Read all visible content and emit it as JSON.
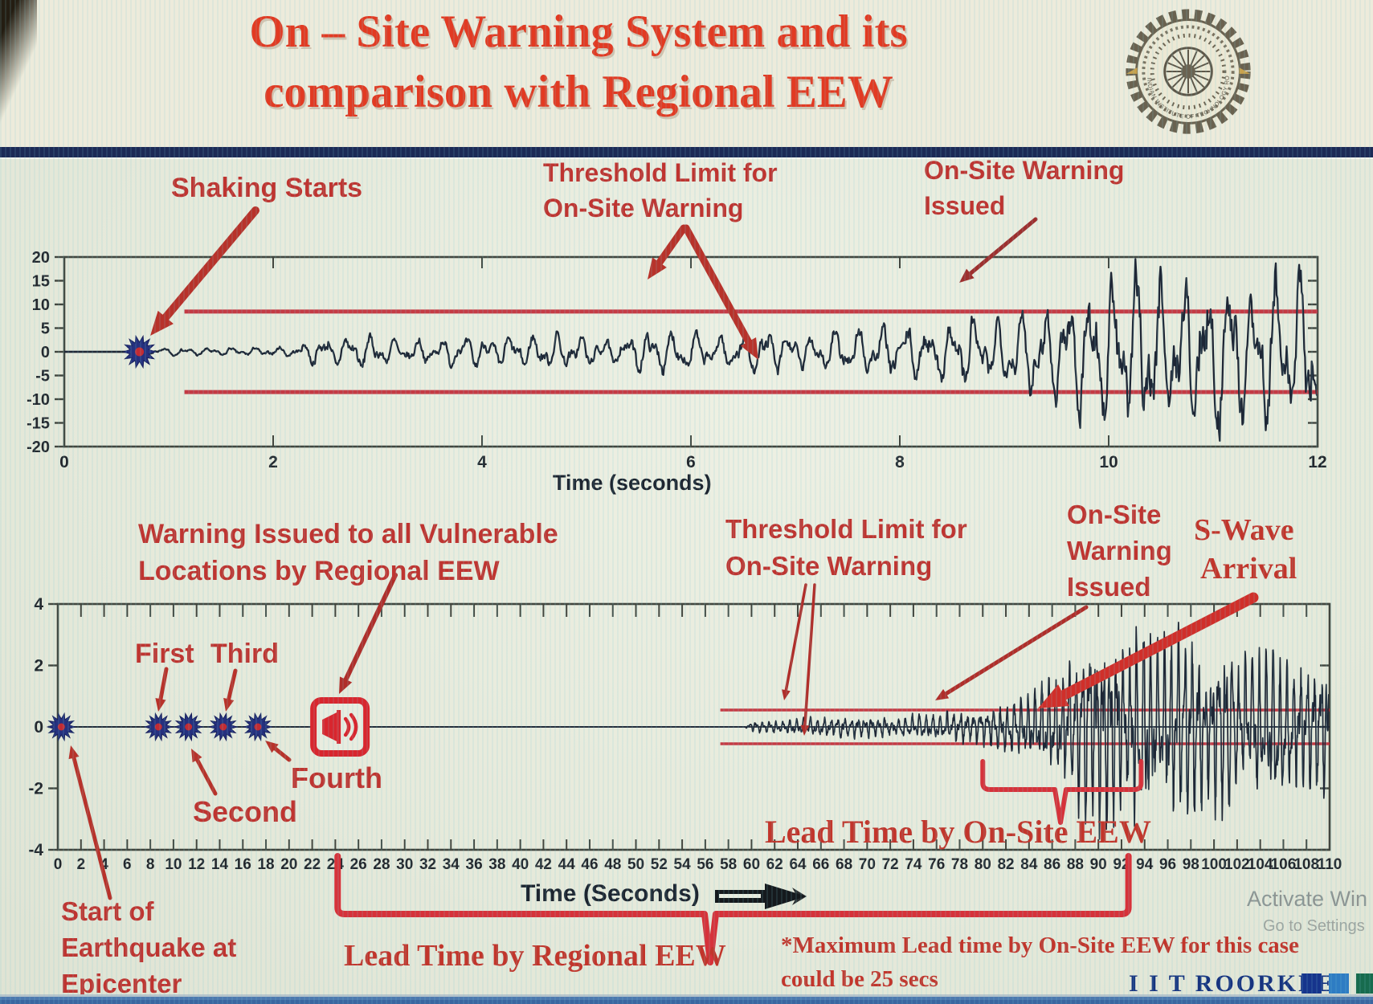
{
  "slide": {
    "title_line1": "On – Site Warning System and its",
    "title_line2": "comparison with Regional EEW"
  },
  "logo": {
    "name": "iit-roorkee-emblem",
    "arc_text": "INDIAN INSTITUTE OF TECHNOLOGY ROORKEE"
  },
  "colors": {
    "title_red": "#e23a22",
    "annotation_red": "#bf3430",
    "annotation_serif_red": "#c2352b",
    "arrow_red": "#b8322a",
    "arrow_bright_red": "#d02f2a",
    "brace_red": "#d6323a",
    "threshold_red": "#c22c38",
    "waveform": "#1e2736",
    "axis": "#41463f",
    "divider_navy": "#1c2a56",
    "brand_navy": "#16337f",
    "square_navy": "#16348c",
    "square_blue": "#2e7cc3",
    "square_green": "#176b4e",
    "watermark_gray": "#8d9492",
    "background": "#e9ecdf"
  },
  "chart_data": [
    {
      "type": "line",
      "kind": "seismogram",
      "name": "onsite-warning-record",
      "xlabel": "Time (seconds)",
      "ylabel": "",
      "xlim": [
        0,
        12
      ],
      "ylim": [
        -20,
        20
      ],
      "xticks": [
        0,
        2,
        4,
        6,
        8,
        10,
        12
      ],
      "yticks": [
        20,
        15,
        10,
        5,
        0,
        -5,
        -10,
        -15,
        -20
      ],
      "grid": false,
      "legend": null,
      "threshold_upper": 8.5,
      "threshold_lower": -8.5,
      "threshold_start_t": 1.15,
      "shaking_start_marker_t": 0.72,
      "envelope": [
        [
          0,
          0
        ],
        [
          0.68,
          0
        ],
        [
          0.78,
          0.7
        ],
        [
          1.6,
          0.8
        ],
        [
          2.2,
          1.0
        ],
        [
          2.5,
          3.4
        ],
        [
          2.8,
          3.9
        ],
        [
          3.15,
          2.3
        ],
        [
          3.7,
          2.9
        ],
        [
          4.3,
          3.1
        ],
        [
          4.7,
          3.6
        ],
        [
          5.2,
          2.7
        ],
        [
          5.7,
          4.3
        ],
        [
          6.2,
          3.3
        ],
        [
          6.7,
          4.5
        ],
        [
          7.1,
          3.5
        ],
        [
          7.6,
          4.6
        ],
        [
          8.1,
          5.4
        ],
        [
          8.65,
          7.4
        ],
        [
          9.0,
          6.3
        ],
        [
          9.45,
          10.0
        ],
        [
          9.9,
          13.5
        ],
        [
          10.35,
          16.5
        ],
        [
          10.7,
          14.0
        ],
        [
          11.05,
          17.5
        ],
        [
          11.45,
          15.0
        ],
        [
          11.8,
          16.5
        ],
        [
          12,
          15.5
        ]
      ],
      "annotations": {
        "shaking_starts": "Shaking Starts",
        "threshold_line1": "Threshold Limit for",
        "threshold_line2": "On-Site Warning",
        "issued_line1": "On-Site Warning",
        "issued_line2": "Issued"
      }
    },
    {
      "type": "line",
      "kind": "seismogram",
      "name": "regional-vs-onsite-record",
      "xlabel": "Time (Seconds)",
      "ylabel": "",
      "xlim": [
        0,
        110
      ],
      "ylim": [
        -4,
        4
      ],
      "xtick_step": 2,
      "xticks": [
        0,
        2,
        4,
        6,
        8,
        10,
        12,
        14,
        16,
        18,
        20,
        22,
        24,
        26,
        28,
        30,
        32,
        34,
        36,
        38,
        40,
        42,
        44,
        46,
        48,
        50,
        52,
        54,
        56,
        58,
        60,
        62,
        64,
        66,
        68,
        70,
        72,
        74,
        76,
        78,
        80,
        82,
        84,
        86,
        88,
        90,
        92,
        94,
        96,
        98,
        100,
        102,
        104,
        106,
        108,
        110
      ],
      "yticks": [
        4,
        2,
        0,
        -2,
        -4
      ],
      "grid": false,
      "legend": null,
      "threshold_upper": 0.55,
      "threshold_lower": -0.55,
      "threshold_start_t": 57.3,
      "signal_start_t": 59.5,
      "p_wave_markers": [
        {
          "t": 0.3,
          "label": "Start of Earthquake at Epicenter"
        },
        {
          "t": 8.7,
          "label": "First"
        },
        {
          "t": 11.3,
          "label": "Second"
        },
        {
          "t": 14.3,
          "label": "Third"
        },
        {
          "t": 17.3,
          "label": "Fourth"
        }
      ],
      "regional_warning_icon_t": 24.4,
      "braces": [
        {
          "id": "regional",
          "label": "Lead Time by Regional EEW",
          "from_t": 24.2,
          "to_t": 92.6
        },
        {
          "id": "onsite",
          "label": "Lead Time by On-Site EEW",
          "from_t": 80,
          "to_t": 93.7
        }
      ],
      "envelope": [
        [
          0,
          0
        ],
        [
          59.4,
          0
        ],
        [
          60,
          0.16
        ],
        [
          63,
          0.22
        ],
        [
          66,
          0.27
        ],
        [
          69,
          0.31
        ],
        [
          72,
          0.28
        ],
        [
          75,
          0.38
        ],
        [
          78,
          0.46
        ],
        [
          80,
          0.6
        ],
        [
          82,
          0.75
        ],
        [
          84,
          0.95
        ],
        [
          86,
          1.3
        ],
        [
          87.5,
          2.0
        ],
        [
          89,
          2.9
        ],
        [
          90.5,
          3.3
        ],
        [
          92,
          2.6
        ],
        [
          93.5,
          3.2
        ],
        [
          95,
          2.4
        ],
        [
          97,
          2.9
        ],
        [
          99,
          2.2
        ],
        [
          101,
          2.6
        ],
        [
          103,
          1.9
        ],
        [
          105,
          2.3
        ],
        [
          107,
          1.8
        ],
        [
          109,
          2.1
        ],
        [
          110,
          2.0
        ]
      ],
      "annotations": {
        "regional_line1": "Warning Issued to all Vulnerable",
        "regional_line2": "Locations by Regional EEW",
        "first": "First",
        "second": "Second",
        "third": "Third",
        "fourth": "Fourth",
        "start_line1": "Start of",
        "start_line2": "Earthquake at",
        "start_line3": "Epicenter",
        "threshold_line1": "Threshold Limit for",
        "threshold_line2": "On-Site Warning",
        "issued_line1": "On-Site",
        "issued_line2": "Warning",
        "issued_line3": "Issued",
        "swave_line1": "S-Wave",
        "swave_line2": "Arrival",
        "lead_onsite": "Lead Time by On-Site EEW",
        "lead_regional": "Lead Time by Regional EEW",
        "note_line1": "*Maximum Lead time by On-Site EEW for this case",
        "note_line2": "could be 25 secs"
      }
    }
  ],
  "footer": {
    "brand": "I I T ROORKEE",
    "watermark_line1": "Activate Win",
    "watermark_line2": "Go to Settings"
  }
}
